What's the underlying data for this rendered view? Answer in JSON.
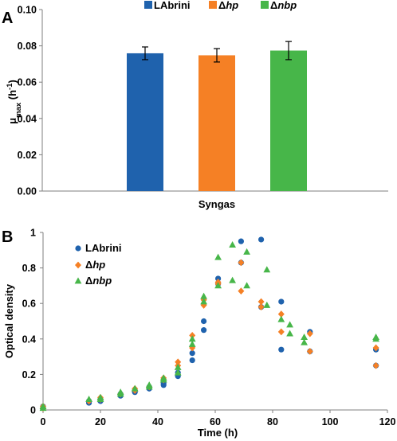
{
  "panels": {
    "a": "A",
    "b": "B"
  },
  "chart_data": [
    {
      "type": "bar",
      "categories": [
        "Syngas"
      ],
      "xlabel": "Syngas",
      "ylabel": {
        "main": "μ",
        "sub": "max",
        "unit": " (h",
        "sup": "-1",
        "close": ")"
      },
      "ylim": [
        0,
        0.1
      ],
      "yticks": [
        "0.00",
        "0.02",
        "0.04",
        "0.06",
        "0.08",
        "0.10"
      ],
      "grid": false,
      "legend_position": "top",
      "series": [
        {
          "name": "LAbrini",
          "prefix": "",
          "ital": "",
          "color": "#1f62ad",
          "value": 0.0759,
          "error": 0.0035
        },
        {
          "name": "Δhp",
          "prefix": "Δ",
          "ital": "hp",
          "color": "#f58025",
          "value": 0.0748,
          "error": 0.0037
        },
        {
          "name": "Δnbp",
          "prefix": "Δ",
          "ital": "nbp",
          "color": "#47b649",
          "value": 0.0774,
          "error": 0.005
        }
      ]
    },
    {
      "type": "scatter",
      "xlabel": "Time (h)",
      "ylabel": "Optical density",
      "xlim": [
        0,
        120
      ],
      "ylim": [
        0,
        1
      ],
      "xticks": [
        "0",
        "20",
        "40",
        "60",
        "80",
        "100",
        "120"
      ],
      "yticks": [
        "0",
        "0.2",
        "0.4",
        "0.6",
        "0.8",
        "1"
      ],
      "grid": false,
      "legend_position": "top-left",
      "series": [
        {
          "name": "LAbrini",
          "prefix": "",
          "ital": "",
          "color": "#1f62ad",
          "marker": "circle",
          "points": [
            [
              0,
              0.02
            ],
            [
              0,
              0.01
            ],
            [
              16,
              0.05
            ],
            [
              16,
              0.04
            ],
            [
              20,
              0.06
            ],
            [
              20,
              0.05
            ],
            [
              27,
              0.08
            ],
            [
              27,
              0.09
            ],
            [
              32,
              0.1
            ],
            [
              32,
              0.11
            ],
            [
              37,
              0.13
            ],
            [
              37,
              0.12
            ],
            [
              42,
              0.15
            ],
            [
              42,
              0.14
            ],
            [
              47,
              0.21
            ],
            [
              47,
              0.19
            ],
            [
              52,
              0.28
            ],
            [
              52,
              0.32
            ],
            [
              56,
              0.45
            ],
            [
              56,
              0.5
            ],
            [
              61,
              0.71
            ],
            [
              61,
              0.74
            ],
            [
              69,
              0.95
            ],
            [
              69,
              0.83
            ],
            [
              76,
              0.96
            ],
            [
              76,
              0.58
            ],
            [
              83,
              0.61
            ],
            [
              83,
              0.34
            ],
            [
              93,
              0.33
            ],
            [
              93,
              0.44
            ],
            [
              116,
              0.25
            ],
            [
              116,
              0.34
            ]
          ]
        },
        {
          "name": "Δhp",
          "prefix": "Δ",
          "ital": "hp",
          "color": "#f58025",
          "marker": "diamond",
          "points": [
            [
              0,
              0.02
            ],
            [
              0,
              0.01
            ],
            [
              16,
              0.05
            ],
            [
              20,
              0.06
            ],
            [
              20,
              0.07
            ],
            [
              27,
              0.09
            ],
            [
              32,
              0.11
            ],
            [
              32,
              0.12
            ],
            [
              37,
              0.13
            ],
            [
              42,
              0.17
            ],
            [
              42,
              0.18
            ],
            [
              47,
              0.27
            ],
            [
              47,
              0.25
            ],
            [
              52,
              0.42
            ],
            [
              52,
              0.35
            ],
            [
              56,
              0.62
            ],
            [
              56,
              0.59
            ],
            [
              61,
              0.72
            ],
            [
              61,
              0.71
            ],
            [
              69,
              0.83
            ],
            [
              69,
              0.67
            ],
            [
              76,
              0.61
            ],
            [
              76,
              0.58
            ],
            [
              83,
              0.54
            ],
            [
              83,
              0.44
            ],
            [
              93,
              0.43
            ],
            [
              93,
              0.33
            ],
            [
              116,
              0.25
            ],
            [
              116,
              0.35
            ]
          ]
        },
        {
          "name": "Δnbp",
          "prefix": "Δ",
          "ital": "nbp",
          "color": "#47b649",
          "marker": "triangle",
          "points": [
            [
              0,
              0.02
            ],
            [
              0,
              0.01
            ],
            [
              16,
              0.06
            ],
            [
              20,
              0.06
            ],
            [
              20,
              0.07
            ],
            [
              27,
              0.1
            ],
            [
              27,
              0.09
            ],
            [
              32,
              0.12
            ],
            [
              37,
              0.14
            ],
            [
              37,
              0.13
            ],
            [
              42,
              0.18
            ],
            [
              42,
              0.17
            ],
            [
              47,
              0.24
            ],
            [
              47,
              0.21
            ],
            [
              52,
              0.4
            ],
            [
              52,
              0.37
            ],
            [
              56,
              0.64
            ],
            [
              56,
              0.61
            ],
            [
              61,
              0.86
            ],
            [
              61,
              0.7
            ],
            [
              66,
              0.93
            ],
            [
              66,
              0.73
            ],
            [
              71,
              0.89
            ],
            [
              71,
              0.7
            ],
            [
              78,
              0.79
            ],
            [
              78,
              0.59
            ],
            [
              83,
              0.51
            ],
            [
              86,
              0.48
            ],
            [
              86,
              0.43
            ],
            [
              91,
              0.41
            ],
            [
              91,
              0.38
            ],
            [
              116,
              0.41
            ],
            [
              116,
              0.4
            ]
          ]
        }
      ]
    }
  ]
}
